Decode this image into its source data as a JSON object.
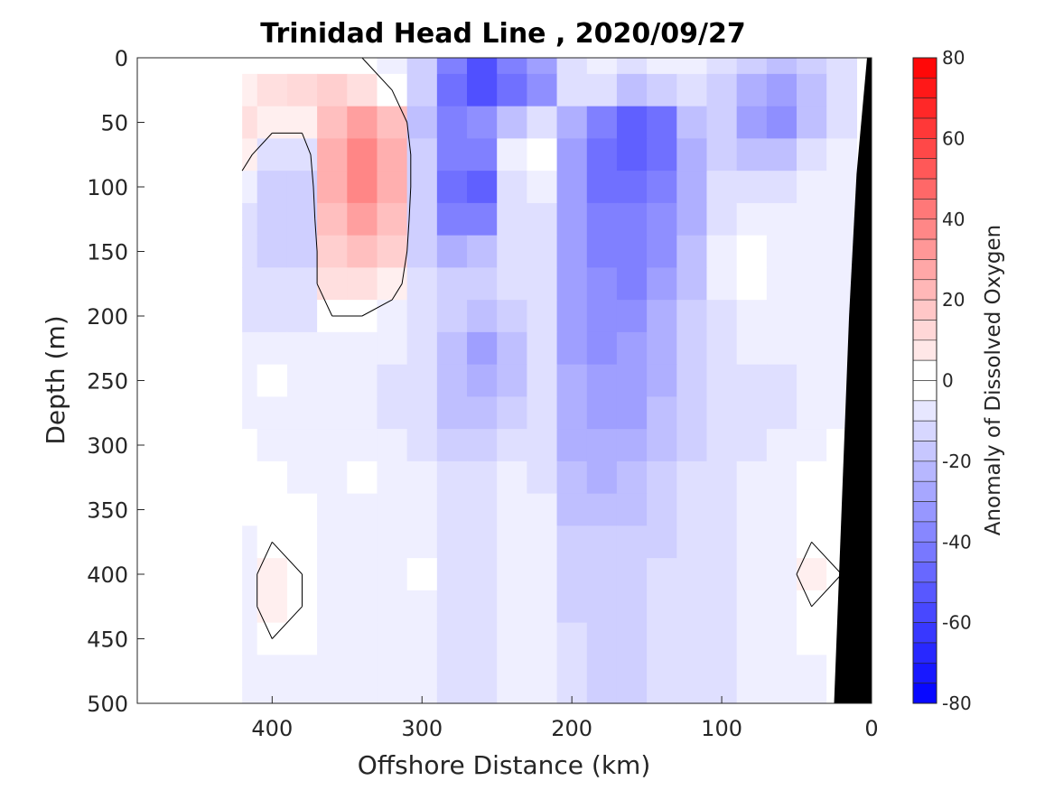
{
  "chart_data": {
    "type": "heatmap",
    "title": "Trinidad Head Line , 2020/09/27",
    "xlabel": "Offshore Distance (km)",
    "ylabel": "Depth (m)",
    "colorbar_label": "Anomaly of Dissolved Oxygen",
    "xlim": [
      490,
      0
    ],
    "ylim": [
      500,
      0
    ],
    "x_ticks": [
      400,
      300,
      200,
      100,
      0
    ],
    "x_ticklabels": [
      "400",
      "300",
      "200",
      "100",
      "0"
    ],
    "y_ticks": [
      0,
      50,
      100,
      150,
      200,
      250,
      300,
      350,
      400,
      450,
      500
    ],
    "y_ticklabels": [
      "0",
      "50",
      "100",
      "150",
      "200",
      "250",
      "300",
      "350",
      "400",
      "450",
      "500"
    ],
    "colorbar_range": [
      -80,
      80
    ],
    "colorbar_step": 5,
    "colorbar_ticks": [
      80,
      60,
      40,
      20,
      0,
      -20,
      -40,
      -60,
      -80
    ],
    "colorbar_ticklabels": [
      "80",
      "60",
      "40",
      "20",
      "0",
      "-20",
      "-40",
      "-60",
      "-80"
    ],
    "colors": {
      "negative": "#0000ff",
      "positive": "#ff0000",
      "neutral": "#ffffff",
      "seafloor": "#000000",
      "contour": "#000000"
    },
    "data_x_extent": [
      420,
      10
    ],
    "x": [
      420,
      400,
      380,
      360,
      340,
      320,
      300,
      280,
      260,
      240,
      220,
      200,
      180,
      160,
      140,
      120,
      100,
      80,
      60,
      40,
      20
    ],
    "depth": [
      0,
      25,
      50,
      75,
      100,
      125,
      150,
      175,
      200,
      225,
      250,
      275,
      300,
      325,
      350,
      375,
      400,
      425,
      450,
      475,
      500
    ],
    "values": [
      [
        0,
        0,
        0,
        0,
        0,
        -5,
        -15,
        -40,
        -55,
        -40,
        -30,
        -10,
        -5,
        -10,
        -5,
        -5,
        -10,
        -15,
        -20,
        -15,
        -10
      ],
      [
        5,
        10,
        12,
        15,
        10,
        0,
        -15,
        -45,
        -55,
        -45,
        -35,
        -10,
        -10,
        -20,
        -15,
        -10,
        -15,
        -25,
        -30,
        -20,
        -10
      ],
      [
        10,
        5,
        5,
        20,
        30,
        20,
        -20,
        -40,
        -35,
        -20,
        -10,
        -25,
        -40,
        -50,
        -45,
        -20,
        -15,
        -30,
        -35,
        -20,
        -10
      ],
      [
        5,
        -10,
        -10,
        25,
        38,
        25,
        -15,
        -40,
        -40,
        -5,
        0,
        -30,
        -45,
        -50,
        -45,
        -25,
        -15,
        -20,
        -20,
        -10,
        -5
      ],
      [
        -5,
        -15,
        -15,
        25,
        38,
        25,
        -15,
        -45,
        -50,
        -10,
        -5,
        -30,
        -45,
        -45,
        -40,
        -25,
        -10,
        -10,
        -10,
        -5,
        -5
      ],
      [
        -10,
        -15,
        -15,
        20,
        30,
        20,
        -15,
        -40,
        -40,
        -10,
        -10,
        -30,
        -40,
        -40,
        -35,
        -25,
        -10,
        -5,
        -5,
        -5,
        -5
      ],
      [
        -10,
        -15,
        -15,
        15,
        20,
        15,
        -15,
        -25,
        -20,
        -10,
        -10,
        -30,
        -40,
        -40,
        -35,
        -20,
        -5,
        0,
        -5,
        -5,
        -5
      ],
      [
        -10,
        -10,
        -10,
        10,
        10,
        5,
        -10,
        -15,
        -15,
        -10,
        -10,
        -30,
        -35,
        -40,
        -30,
        -20,
        -5,
        0,
        -5,
        -5,
        -5
      ],
      [
        -10,
        -10,
        -10,
        0,
        0,
        -5,
        -10,
        -15,
        -20,
        -15,
        -10,
        -30,
        -35,
        -35,
        -25,
        -15,
        -10,
        -5,
        -5,
        -5,
        -5
      ],
      [
        -5,
        -5,
        -5,
        -5,
        -5,
        -5,
        -10,
        -20,
        -30,
        -20,
        -10,
        -30,
        -35,
        -30,
        -25,
        -15,
        -10,
        -5,
        -5,
        -5,
        -5
      ],
      [
        -5,
        0,
        -5,
        -5,
        -5,
        -10,
        -10,
        -20,
        -25,
        -20,
        -10,
        -25,
        -30,
        -30,
        -25,
        -15,
        -10,
        -10,
        -10,
        -5,
        -5
      ],
      [
        -5,
        -5,
        -5,
        -5,
        -5,
        -10,
        -10,
        -20,
        -20,
        -15,
        -10,
        -25,
        -30,
        -30,
        -20,
        -15,
        -10,
        -10,
        -10,
        -5,
        -5
      ],
      [
        0,
        -5,
        -5,
        -5,
        -5,
        -5,
        -10,
        -15,
        -15,
        -10,
        -10,
        -25,
        -25,
        -25,
        -20,
        -15,
        -10,
        -10,
        -5,
        -5,
        0
      ],
      [
        0,
        0,
        -5,
        -5,
        0,
        -5,
        -5,
        -10,
        -10,
        -5,
        -10,
        -20,
        -25,
        -20,
        -15,
        -10,
        -10,
        -5,
        -5,
        0,
        0
      ],
      [
        0,
        0,
        0,
        -5,
        -5,
        -5,
        -5,
        -10,
        -10,
        -5,
        -5,
        -20,
        -20,
        -20,
        -15,
        -10,
        -10,
        -5,
        -5,
        0,
        0
      ],
      [
        -5,
        0,
        0,
        -5,
        -5,
        -5,
        -5,
        -10,
        -10,
        -5,
        -5,
        -15,
        -15,
        -15,
        -15,
        -10,
        -10,
        -5,
        -5,
        0,
        0
      ],
      [
        -5,
        5,
        0,
        -5,
        -5,
        -5,
        0,
        -10,
        -10,
        -5,
        -5,
        -15,
        -15,
        -15,
        -10,
        -10,
        -10,
        -5,
        -5,
        5,
        0
      ],
      [
        -5,
        5,
        0,
        -5,
        -5,
        -5,
        -5,
        -10,
        -10,
        -5,
        -5,
        -15,
        -15,
        -15,
        -10,
        -10,
        -10,
        -5,
        -5,
        0,
        0
      ],
      [
        -5,
        0,
        0,
        -5,
        -5,
        -5,
        -5,
        -10,
        -10,
        -5,
        -5,
        -10,
        -15,
        -15,
        -10,
        -10,
        -10,
        -5,
        -5,
        0,
        0
      ],
      [
        -5,
        -5,
        -5,
        -5,
        -5,
        -5,
        -5,
        -10,
        -10,
        -5,
        -5,
        -10,
        -15,
        -15,
        -10,
        -10,
        -10,
        -5,
        -5,
        -5,
        0
      ],
      [
        -5,
        -5,
        -5,
        -5,
        -5,
        -5,
        -5,
        -10,
        -10,
        -5,
        -5,
        -10,
        -15,
        -15,
        -10,
        -10,
        -10,
        -5,
        -5,
        -5,
        0
      ]
    ],
    "bathymetry": [
      [
        0,
        0
      ],
      [
        3,
        0
      ],
      [
        10,
        90
      ],
      [
        15,
        200
      ],
      [
        20,
        350
      ],
      [
        25,
        500
      ],
      [
        0,
        500
      ]
    ]
  }
}
